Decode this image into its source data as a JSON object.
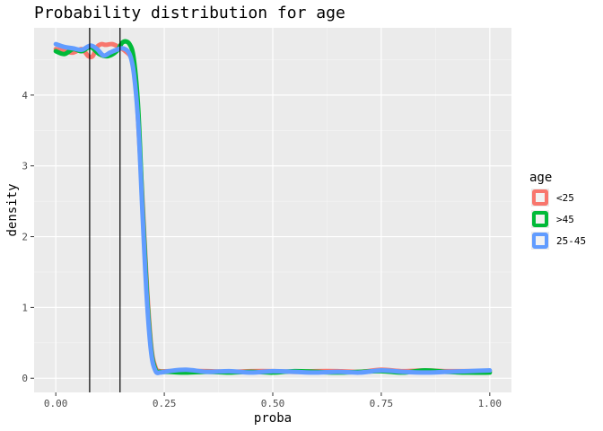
{
  "chart_data": {
    "type": "line",
    "title": "Probability distribution for age",
    "xlabel": "proba",
    "ylabel": "density",
    "xlim": [
      -0.05,
      1.05
    ],
    "ylim": [
      -0.2,
      4.95
    ],
    "x_ticks": [
      0.0,
      0.25,
      0.5,
      0.75,
      1.0
    ],
    "x_tick_labels": [
      "0.00",
      "0.25",
      "0.50",
      "0.75",
      "1.00"
    ],
    "y_ticks": [
      0,
      1,
      2,
      3,
      4
    ],
    "y_tick_labels": [
      "0",
      "1",
      "2",
      "3",
      "4"
    ],
    "grid": true,
    "panel_background": "#ebebeb",
    "vlines": [
      0.078,
      0.148
    ],
    "vline_color": "#000000",
    "legend": {
      "title": "age",
      "position": "right"
    },
    "series": [
      {
        "name": "<25",
        "color": "#f8766d",
        "x": [
          0.0,
          0.02,
          0.04,
          0.06,
          0.075,
          0.085,
          0.095,
          0.105,
          0.115,
          0.13,
          0.145,
          0.16,
          0.175,
          0.185,
          0.19,
          0.2,
          0.21,
          0.22,
          0.23,
          0.24,
          0.26,
          0.3,
          0.35,
          0.4,
          0.45,
          0.5,
          0.55,
          0.6,
          0.65,
          0.7,
          0.75,
          0.8,
          0.85,
          0.9,
          0.95,
          1.0
        ],
        "values": [
          4.65,
          4.62,
          4.6,
          4.65,
          4.55,
          4.55,
          4.68,
          4.72,
          4.71,
          4.72,
          4.68,
          4.62,
          4.5,
          4.1,
          3.6,
          2.5,
          1.3,
          0.45,
          0.15,
          0.1,
          0.1,
          0.1,
          0.1,
          0.09,
          0.1,
          0.1,
          0.09,
          0.1,
          0.1,
          0.09,
          0.12,
          0.1,
          0.11,
          0.1,
          0.1,
          0.1
        ]
      },
      {
        "name": ">45",
        "color": "#00ba38",
        "x": [
          0.0,
          0.02,
          0.04,
          0.06,
          0.08,
          0.1,
          0.12,
          0.14,
          0.155,
          0.17,
          0.18,
          0.19,
          0.2,
          0.21,
          0.22,
          0.23,
          0.24,
          0.26,
          0.3,
          0.35,
          0.4,
          0.45,
          0.5,
          0.55,
          0.6,
          0.65,
          0.7,
          0.75,
          0.8,
          0.85,
          0.9,
          0.95,
          1.0
        ],
        "values": [
          4.62,
          4.58,
          4.65,
          4.62,
          4.68,
          4.58,
          4.55,
          4.62,
          4.75,
          4.72,
          4.5,
          3.8,
          2.4,
          1.2,
          0.4,
          0.12,
          0.09,
          0.09,
          0.08,
          0.09,
          0.08,
          0.09,
          0.08,
          0.1,
          0.09,
          0.08,
          0.09,
          0.1,
          0.08,
          0.11,
          0.09,
          0.08,
          0.08
        ]
      },
      {
        "name": "25-45",
        "color": "#619cff",
        "x": [
          0.0,
          0.02,
          0.04,
          0.06,
          0.08,
          0.095,
          0.11,
          0.125,
          0.14,
          0.155,
          0.17,
          0.18,
          0.19,
          0.2,
          0.21,
          0.22,
          0.23,
          0.24,
          0.26,
          0.3,
          0.35,
          0.4,
          0.45,
          0.5,
          0.55,
          0.6,
          0.65,
          0.7,
          0.75,
          0.8,
          0.85,
          0.9,
          0.95,
          1.0
        ],
        "values": [
          4.72,
          4.68,
          4.66,
          4.64,
          4.7,
          4.65,
          4.56,
          4.6,
          4.64,
          4.66,
          4.58,
          4.3,
          3.6,
          2.3,
          1.1,
          0.35,
          0.1,
          0.08,
          0.1,
          0.12,
          0.09,
          0.1,
          0.08,
          0.1,
          0.09,
          0.08,
          0.09,
          0.08,
          0.11,
          0.09,
          0.08,
          0.09,
          0.1,
          0.11
        ]
      }
    ]
  }
}
